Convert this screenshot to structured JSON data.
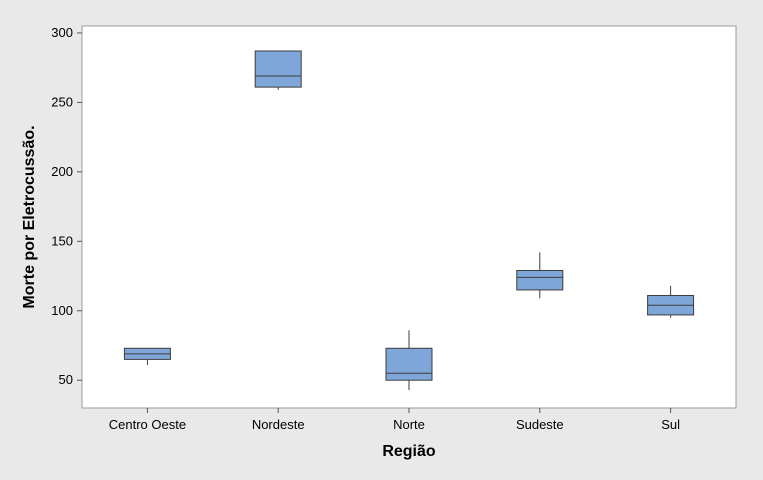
{
  "chart_data": {
    "type": "boxplot",
    "title": "",
    "xlabel": "Região",
    "ylabel": "Morte por Eletrocussão.",
    "ylim": [
      30,
      305
    ],
    "yticks": [
      50,
      100,
      150,
      200,
      250,
      300
    ],
    "categories": [
      "Centro Oeste",
      "Nordeste",
      "Norte",
      "Sudeste",
      "Sul"
    ],
    "boxes": [
      {
        "category": "Centro Oeste",
        "min": 61,
        "q1": 65,
        "median": 69,
        "q3": 73,
        "max": 73
      },
      {
        "category": "Nordeste",
        "min": 259,
        "q1": 261,
        "median": 269,
        "q3": 287,
        "max": 287
      },
      {
        "category": "Norte",
        "min": 43,
        "q1": 50,
        "median": 55,
        "q3": 73,
        "max": 86
      },
      {
        "category": "Sudeste",
        "min": 109,
        "q1": 115,
        "median": 124,
        "q3": 129,
        "max": 142
      },
      {
        "category": "Sul",
        "min": 95,
        "q1": 97,
        "median": 104,
        "q3": 111,
        "max": 118
      }
    ],
    "grid": false,
    "legend": "none",
    "colors": {
      "box_fill": "#7ea6d8",
      "box_stroke": "#3d3d3d",
      "plot_bg": "#ffffff",
      "figure_bg": "#e9e9e9"
    }
  }
}
